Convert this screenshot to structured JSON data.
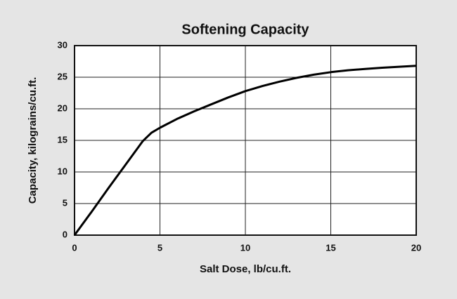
{
  "chart_data": {
    "type": "line",
    "title": "Softening Capacity",
    "xlabel": "Salt Dose, lb/cu.ft.",
    "ylabel": "Capacity, kilograins/cu.ft.",
    "x": [
      0,
      1,
      2,
      3,
      4,
      4.5,
      5,
      6,
      7,
      8,
      9,
      10,
      11,
      12,
      13,
      14,
      15,
      16,
      17,
      18,
      19,
      20
    ],
    "series": [
      {
        "color": "#000000",
        "values": [
          0,
          3.7,
          7.5,
          11.2,
          14.9,
          16.2,
          17,
          18.4,
          19.6,
          20.7,
          21.8,
          22.8,
          23.6,
          24.3,
          24.9,
          25.4,
          25.8,
          26.1,
          26.3,
          26.5,
          26.65,
          26.8
        ]
      }
    ],
    "xlim": [
      0,
      20
    ],
    "xticks": [
      0,
      5,
      10,
      15,
      20
    ],
    "ylim": [
      0,
      30
    ],
    "yticks": [
      0,
      5,
      10,
      15,
      20,
      25,
      30
    ],
    "grid": true
  }
}
